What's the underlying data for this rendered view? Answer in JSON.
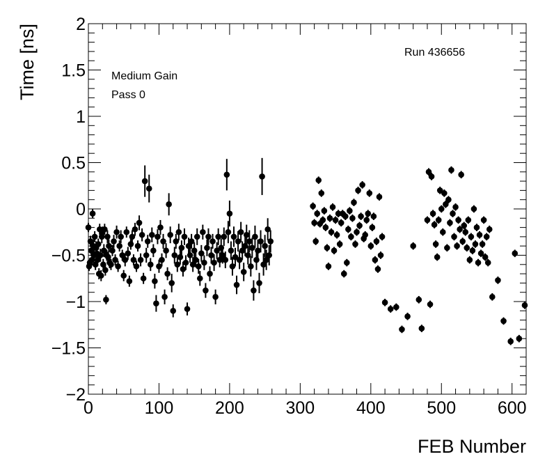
{
  "chart_data": {
    "type": "scatter",
    "title": "",
    "xlabel": "FEB Number",
    "ylabel": "Time [ns]",
    "xlim": [
      0,
      620
    ],
    "ylim": [
      -2,
      2
    ],
    "x_ticks": [
      0,
      100,
      200,
      300,
      400,
      500,
      600
    ],
    "x_tick_labels": [
      "0",
      "100",
      "200",
      "300",
      "400",
      "500",
      "600"
    ],
    "y_ticks": [
      -2,
      -1.5,
      -1,
      -0.5,
      0,
      0.5,
      1,
      1.5,
      2
    ],
    "y_tick_labels": [
      "−2",
      "−1.5",
      "−1",
      "−0.5",
      "0",
      "0.5",
      "1",
      "1.5",
      "2"
    ],
    "grid": false,
    "marker_color": "#000000",
    "annotations": {
      "run": "Run 436656",
      "gain": "Medium Gain",
      "pass": "Pass 0"
    },
    "points": [
      [
        0,
        -0.2,
        0.05
      ],
      [
        1,
        -0.62,
        0.05
      ],
      [
        2,
        -0.58,
        0.05
      ],
      [
        3,
        -0.35,
        0.06
      ],
      [
        4,
        -0.45,
        0.06
      ],
      [
        5,
        -0.55,
        0.06
      ],
      [
        6,
        -0.05,
        0.05
      ],
      [
        7,
        -0.4,
        0.07
      ],
      [
        8,
        -0.5,
        0.06
      ],
      [
        9,
        -0.3,
        0.06
      ],
      [
        10,
        -0.6,
        0.06
      ],
      [
        11,
        -0.42,
        0.07
      ],
      [
        12,
        -0.48,
        0.06
      ],
      [
        13,
        -0.55,
        0.07
      ],
      [
        14,
        -0.38,
        0.06
      ],
      [
        15,
        -0.7,
        0.06
      ],
      [
        16,
        -0.22,
        0.06
      ],
      [
        17,
        -0.5,
        0.07
      ],
      [
        18,
        -0.72,
        0.06
      ],
      [
        19,
        -0.3,
        0.07
      ],
      [
        20,
        -0.25,
        0.06
      ],
      [
        21,
        -0.6,
        0.06
      ],
      [
        22,
        -0.45,
        0.07
      ],
      [
        23,
        -0.22,
        0.06
      ],
      [
        24,
        -0.66,
        0.06
      ],
      [
        25,
        -0.98,
        0.05
      ],
      [
        26,
        -0.5,
        0.06
      ],
      [
        27,
        -0.3,
        0.07
      ],
      [
        28,
        -0.52,
        0.06
      ],
      [
        29,
        -0.4,
        0.07
      ],
      [
        30,
        -0.58,
        0.06
      ],
      [
        32,
        -0.6,
        0.06
      ],
      [
        34,
        -0.45,
        0.06
      ],
      [
        36,
        -0.35,
        0.07
      ],
      [
        38,
        -0.55,
        0.06
      ],
      [
        40,
        -0.25,
        0.07
      ],
      [
        42,
        -0.62,
        0.06
      ],
      [
        44,
        -0.4,
        0.06
      ],
      [
        46,
        -0.3,
        0.07
      ],
      [
        48,
        -0.5,
        0.06
      ],
      [
        50,
        -0.72,
        0.06
      ],
      [
        52,
        -0.55,
        0.07
      ],
      [
        54,
        -0.25,
        0.06
      ],
      [
        56,
        -0.48,
        0.07
      ],
      [
        58,
        -0.78,
        0.06
      ],
      [
        60,
        -0.38,
        0.06
      ],
      [
        62,
        -0.3,
        0.07
      ],
      [
        64,
        -0.55,
        0.06
      ],
      [
        66,
        -0.22,
        0.07
      ],
      [
        68,
        -0.62,
        0.06
      ],
      [
        70,
        -0.4,
        0.06
      ],
      [
        72,
        -0.15,
        0.08
      ],
      [
        74,
        -0.55,
        0.07
      ],
      [
        76,
        -0.28,
        0.07
      ],
      [
        78,
        -0.75,
        0.06
      ],
      [
        80,
        0.3,
        0.17
      ],
      [
        82,
        -0.5,
        0.08
      ],
      [
        84,
        -0.35,
        0.07
      ],
      [
        86,
        0.22,
        0.15
      ],
      [
        88,
        -0.6,
        0.07
      ],
      [
        90,
        -0.28,
        0.08
      ],
      [
        92,
        -0.45,
        0.07
      ],
      [
        94,
        -0.78,
        0.08
      ],
      [
        96,
        -1.02,
        0.09
      ],
      [
        98,
        -0.3,
        0.08
      ],
      [
        100,
        -0.62,
        0.07
      ],
      [
        102,
        -0.2,
        0.08
      ],
      [
        104,
        -0.55,
        0.07
      ],
      [
        106,
        -0.35,
        0.08
      ],
      [
        108,
        -0.95,
        0.08
      ],
      [
        110,
        -0.45,
        0.08
      ],
      [
        112,
        -0.7,
        0.07
      ],
      [
        114,
        0.05,
        0.12
      ],
      [
        116,
        -0.28,
        0.09
      ],
      [
        118,
        -0.8,
        0.1
      ],
      [
        120,
        -1.1,
        0.07
      ],
      [
        122,
        -0.5,
        0.09
      ],
      [
        124,
        -0.35,
        0.08
      ],
      [
        126,
        -0.6,
        0.08
      ],
      [
        128,
        -0.25,
        0.09
      ],
      [
        130,
        -0.52,
        0.08
      ],
      [
        132,
        -0.42,
        0.08
      ],
      [
        134,
        -0.65,
        0.08
      ],
      [
        136,
        -0.3,
        0.09
      ],
      [
        138,
        -0.58,
        0.08
      ],
      [
        140,
        -1.08,
        0.07
      ],
      [
        142,
        -0.4,
        0.09
      ],
      [
        144,
        -0.5,
        0.08
      ],
      [
        146,
        -0.35,
        0.08
      ],
      [
        148,
        -0.6,
        0.08
      ],
      [
        150,
        -0.45,
        0.09
      ],
      [
        152,
        -0.55,
        0.08
      ],
      [
        154,
        -0.3,
        0.09
      ],
      [
        156,
        -0.62,
        0.08
      ],
      [
        158,
        -0.75,
        0.08
      ],
      [
        160,
        -0.48,
        0.09
      ],
      [
        162,
        -0.25,
        0.08
      ],
      [
        164,
        -0.58,
        0.08
      ],
      [
        166,
        -0.88,
        0.08
      ],
      [
        168,
        -0.42,
        0.09
      ],
      [
        170,
        -0.3,
        0.09
      ],
      [
        172,
        -0.7,
        0.08
      ],
      [
        174,
        -0.5,
        0.09
      ],
      [
        176,
        -0.35,
        0.08
      ],
      [
        178,
        -0.58,
        0.09
      ],
      [
        180,
        -0.95,
        0.08
      ],
      [
        182,
        -0.45,
        0.09
      ],
      [
        184,
        -0.3,
        0.09
      ],
      [
        186,
        -0.55,
        0.08
      ],
      [
        188,
        -0.42,
        0.1
      ],
      [
        190,
        -0.5,
        0.09
      ],
      [
        192,
        -0.3,
        0.1
      ],
      [
        194,
        -0.55,
        0.09
      ],
      [
        196,
        0.37,
        0.17
      ],
      [
        198,
        -0.25,
        0.12
      ],
      [
        200,
        -0.05,
        0.14
      ],
      [
        202,
        -0.45,
        0.1
      ],
      [
        204,
        -0.62,
        0.1
      ],
      [
        206,
        -0.3,
        0.11
      ],
      [
        208,
        -0.52,
        0.1
      ],
      [
        210,
        -0.82,
        0.1
      ],
      [
        212,
        -0.35,
        0.11
      ],
      [
        214,
        -0.55,
        0.1
      ],
      [
        216,
        -0.25,
        0.11
      ],
      [
        218,
        -0.45,
        0.1
      ],
      [
        220,
        -0.68,
        0.1
      ],
      [
        222,
        -0.4,
        0.11
      ],
      [
        224,
        -0.28,
        0.11
      ],
      [
        226,
        -0.5,
        0.1
      ],
      [
        228,
        -0.35,
        0.12
      ],
      [
        230,
        -0.62,
        0.11
      ],
      [
        232,
        -0.42,
        0.11
      ],
      [
        234,
        -0.88,
        0.11
      ],
      [
        236,
        -0.3,
        0.12
      ],
      [
        238,
        -0.55,
        0.11
      ],
      [
        240,
        -0.45,
        0.12
      ],
      [
        242,
        -0.8,
        0.11
      ],
      [
        244,
        -0.35,
        0.12
      ],
      [
        246,
        0.35,
        0.2
      ],
      [
        248,
        -0.6,
        0.12
      ],
      [
        250,
        -0.4,
        0.12
      ],
      [
        252,
        -0.55,
        0.11
      ],
      [
        254,
        -0.22,
        0.12
      ],
      [
        256,
        -0.5,
        0.11
      ],
      [
        258,
        -0.35,
        0.12
      ],
      [
        318,
        0.03,
        0.04
      ],
      [
        320,
        -0.15,
        0.04
      ],
      [
        322,
        -0.35,
        0.04
      ],
      [
        324,
        -0.05,
        0.04
      ],
      [
        326,
        0.31,
        0.04
      ],
      [
        328,
        -0.16,
        0.04
      ],
      [
        330,
        0.17,
        0.04
      ],
      [
        332,
        -0.12,
        0.04
      ],
      [
        334,
        -0.02,
        0.04
      ],
      [
        336,
        -0.2,
        0.04
      ],
      [
        338,
        -0.42,
        0.04
      ],
      [
        340,
        -0.62,
        0.04
      ],
      [
        342,
        -0.1,
        0.04
      ],
      [
        344,
        -0.25,
        0.04
      ],
      [
        346,
        0.02,
        0.04
      ],
      [
        348,
        -0.45,
        0.04
      ],
      [
        350,
        -0.12,
        0.04
      ],
      [
        352,
        -0.28,
        0.04
      ],
      [
        354,
        -0.05,
        0.04
      ],
      [
        356,
        -0.38,
        0.04
      ],
      [
        358,
        -0.15,
        0.04
      ],
      [
        360,
        -0.05,
        0.04
      ],
      [
        362,
        -0.7,
        0.04
      ],
      [
        364,
        -0.08,
        0.04
      ],
      [
        366,
        -0.58,
        0.04
      ],
      [
        368,
        -0.22,
        0.04
      ],
      [
        370,
        -0.02,
        0.04
      ],
      [
        372,
        -0.3,
        0.04
      ],
      [
        374,
        -0.1,
        0.04
      ],
      [
        376,
        0.07,
        0.04
      ],
      [
        378,
        -0.38,
        0.04
      ],
      [
        380,
        -0.25,
        0.04
      ],
      [
        382,
        0.2,
        0.04
      ],
      [
        384,
        -0.18,
        0.04
      ],
      [
        386,
        -0.08,
        0.04
      ],
      [
        388,
        0.26,
        0.04
      ],
      [
        390,
        -0.32,
        0.04
      ],
      [
        392,
        -0.28,
        0.04
      ],
      [
        394,
        -0.12,
        0.04
      ],
      [
        396,
        -0.05,
        0.04
      ],
      [
        398,
        0.17,
        0.04
      ],
      [
        400,
        -0.4,
        0.04
      ],
      [
        402,
        -0.2,
        0.04
      ],
      [
        404,
        -0.08,
        0.04
      ],
      [
        406,
        -0.55,
        0.04
      ],
      [
        408,
        -0.35,
        0.04
      ],
      [
        410,
        -0.65,
        0.04
      ],
      [
        412,
        0.13,
        0.04
      ],
      [
        414,
        -0.5,
        0.04
      ],
      [
        416,
        -0.3,
        0.04
      ],
      [
        420,
        -1.01,
        0.04
      ],
      [
        428,
        -1.08,
        0.04
      ],
      [
        436,
        -1.06,
        0.04
      ],
      [
        444,
        -1.3,
        0.04
      ],
      [
        452,
        -1.16,
        0.04
      ],
      [
        460,
        -0.4,
        0.04
      ],
      [
        468,
        -0.98,
        0.04
      ],
      [
        472,
        -1.29,
        0.04
      ],
      [
        480,
        -0.12,
        0.04
      ],
      [
        482,
        0.4,
        0.04
      ],
      [
        484,
        -1.03,
        0.04
      ],
      [
        486,
        0.35,
        0.04
      ],
      [
        488,
        -0.05,
        0.04
      ],
      [
        490,
        -0.17,
        0.04
      ],
      [
        492,
        -0.38,
        0.04
      ],
      [
        494,
        -0.52,
        0.04
      ],
      [
        496,
        -0.12,
        0.04
      ],
      [
        498,
        0.2,
        0.04
      ],
      [
        500,
        0.0,
        0.04
      ],
      [
        502,
        -0.25,
        0.04
      ],
      [
        504,
        0.17,
        0.04
      ],
      [
        506,
        0.05,
        0.04
      ],
      [
        508,
        -0.42,
        0.04
      ],
      [
        510,
        0.1,
        0.04
      ],
      [
        512,
        -0.15,
        0.04
      ],
      [
        514,
        0.42,
        0.04
      ],
      [
        516,
        -0.05,
        0.04
      ],
      [
        518,
        -0.3,
        0.04
      ],
      [
        520,
        0.02,
        0.04
      ],
      [
        522,
        -0.4,
        0.04
      ],
      [
        524,
        -0.12,
        0.04
      ],
      [
        526,
        -0.22,
        0.04
      ],
      [
        528,
        0.37,
        0.04
      ],
      [
        530,
        -0.35,
        0.04
      ],
      [
        532,
        -0.18,
        0.04
      ],
      [
        534,
        -0.25,
        0.04
      ],
      [
        536,
        -0.42,
        0.04
      ],
      [
        538,
        -0.12,
        0.04
      ],
      [
        540,
        -0.55,
        0.04
      ],
      [
        542,
        -0.3,
        0.04
      ],
      [
        544,
        -0.45,
        0.04
      ],
      [
        546,
        0.0,
        0.04
      ],
      [
        548,
        -0.38,
        0.04
      ],
      [
        550,
        -0.2,
        0.04
      ],
      [
        552,
        -0.58,
        0.04
      ],
      [
        554,
        -0.28,
        0.04
      ],
      [
        556,
        -0.48,
        0.04
      ],
      [
        558,
        -0.38,
        0.04
      ],
      [
        560,
        -0.12,
        0.04
      ],
      [
        562,
        -0.52,
        0.04
      ],
      [
        564,
        -0.3,
        0.04
      ],
      [
        566,
        -0.58,
        0.04
      ],
      [
        568,
        -0.22,
        0.04
      ],
      [
        572,
        -0.95,
        0.04
      ],
      [
        580,
        -0.77,
        0.04
      ],
      [
        588,
        -1.21,
        0.04
      ],
      [
        598,
        -1.43,
        0.04
      ],
      [
        604,
        -0.48,
        0.04
      ],
      [
        610,
        -1.4,
        0.04
      ],
      [
        618,
        -1.04,
        0.04
      ]
    ]
  }
}
